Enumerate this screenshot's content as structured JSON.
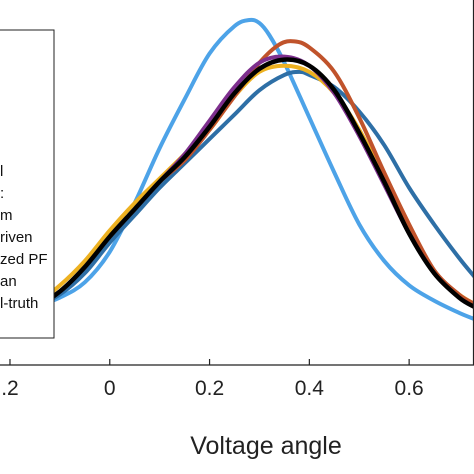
{
  "chart_data": {
    "type": "line",
    "xlabel": "Voltage angle",
    "ylabel": "",
    "title": "",
    "xlim": [
      -0.22,
      0.73
    ],
    "ylim": [
      0,
      1
    ],
    "x_ticks": [
      -0.2,
      0,
      0.2,
      0.4,
      0.6
    ],
    "x_tick_labels": [
      ".2",
      "0",
      "0.2",
      "0.4",
      "0.6"
    ],
    "grid": false,
    "legend": {
      "placement": "top-left",
      "entries": [
        "l",
        ":",
        "m",
        "riven",
        "zed PF",
        "an",
        "l-truth"
      ]
    },
    "series": [
      {
        "color": "#4DA3E8",
        "x": [
          -0.22,
          -0.15,
          -0.1,
          -0.05,
          0,
          0.05,
          0.1,
          0.15,
          0.2,
          0.25,
          0.28,
          0.3,
          0.32,
          0.35,
          0.4,
          0.45,
          0.5,
          0.55,
          0.6,
          0.65,
          0.7,
          0.73
        ],
        "y": [
          0.02,
          0.06,
          0.09,
          0.14,
          0.24,
          0.4,
          0.58,
          0.74,
          0.89,
          0.98,
          1.0,
          0.99,
          0.95,
          0.86,
          0.68,
          0.5,
          0.33,
          0.21,
          0.13,
          0.08,
          0.04,
          0.02
        ]
      },
      {
        "color": "#2E6FA6",
        "x": [
          -0.22,
          -0.15,
          -0.1,
          -0.05,
          0,
          0.05,
          0.1,
          0.15,
          0.2,
          0.25,
          0.3,
          0.35,
          0.38,
          0.4,
          0.45,
          0.5,
          0.55,
          0.6,
          0.65,
          0.7,
          0.73
        ],
        "y": [
          0.02,
          0.06,
          0.1,
          0.17,
          0.27,
          0.36,
          0.45,
          0.53,
          0.61,
          0.69,
          0.77,
          0.82,
          0.83,
          0.82,
          0.78,
          0.7,
          0.59,
          0.45,
          0.33,
          0.22,
          0.16
        ]
      },
      {
        "color": "#EDB120",
        "x": [
          -0.22,
          -0.15,
          -0.1,
          -0.05,
          0,
          0.05,
          0.1,
          0.15,
          0.2,
          0.25,
          0.3,
          0.35,
          0.4,
          0.45,
          0.5,
          0.55,
          0.6,
          0.65,
          0.7,
          0.73
        ],
        "y": [
          0.04,
          0.07,
          0.13,
          0.21,
          0.31,
          0.4,
          0.48,
          0.56,
          0.64,
          0.75,
          0.83,
          0.85,
          0.83,
          0.76,
          0.64,
          0.48,
          0.31,
          0.17,
          0.1,
          0.07
        ]
      },
      {
        "color": "#C0532B",
        "x": [
          -0.22,
          -0.15,
          -0.1,
          -0.05,
          0,
          0.05,
          0.1,
          0.15,
          0.2,
          0.25,
          0.3,
          0.34,
          0.37,
          0.4,
          0.45,
          0.5,
          0.55,
          0.6,
          0.65,
          0.7,
          0.73
        ],
        "y": [
          0.03,
          0.06,
          0.11,
          0.19,
          0.29,
          0.38,
          0.47,
          0.54,
          0.64,
          0.75,
          0.86,
          0.92,
          0.93,
          0.91,
          0.83,
          0.68,
          0.5,
          0.33,
          0.18,
          0.1,
          0.07
        ]
      },
      {
        "color": "#7E2F8E",
        "x": [
          -0.22,
          -0.15,
          -0.1,
          -0.05,
          0,
          0.05,
          0.1,
          0.15,
          0.2,
          0.25,
          0.3,
          0.35,
          0.4,
          0.45,
          0.5,
          0.55,
          0.6,
          0.65,
          0.7,
          0.73
        ],
        "y": [
          0.03,
          0.06,
          0.11,
          0.19,
          0.29,
          0.38,
          0.47,
          0.56,
          0.67,
          0.78,
          0.86,
          0.88,
          0.85,
          0.76,
          0.62,
          0.46,
          0.3,
          0.17,
          0.09,
          0.06
        ]
      },
      {
        "color": "#000000",
        "x": [
          -0.22,
          -0.15,
          -0.1,
          -0.05,
          0,
          0.05,
          0.1,
          0.15,
          0.2,
          0.25,
          0.3,
          0.35,
          0.4,
          0.45,
          0.5,
          0.55,
          0.6,
          0.65,
          0.7,
          0.73
        ],
        "y": [
          0.03,
          0.06,
          0.11,
          0.19,
          0.29,
          0.38,
          0.47,
          0.55,
          0.65,
          0.76,
          0.84,
          0.87,
          0.85,
          0.77,
          0.63,
          0.47,
          0.3,
          0.17,
          0.09,
          0.06
        ]
      }
    ]
  }
}
